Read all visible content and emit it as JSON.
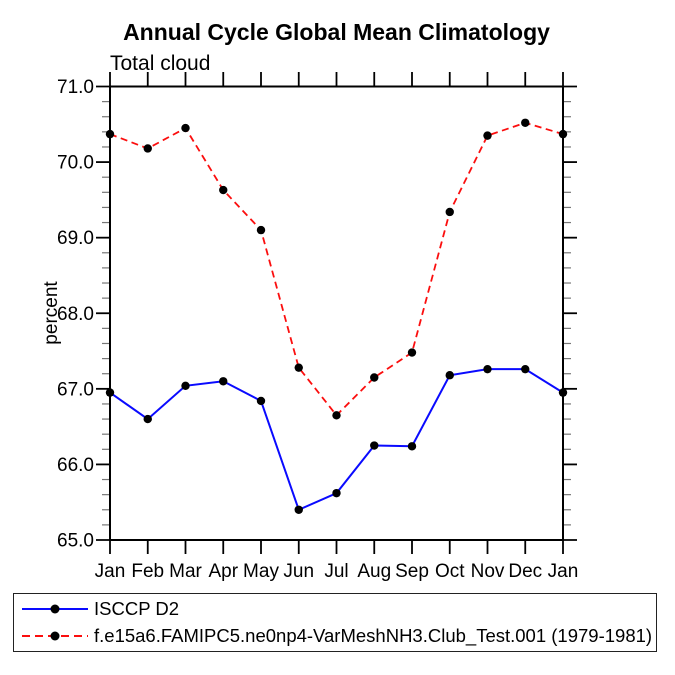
{
  "title": "Annual Cycle Global Mean Climatology",
  "subtitle": "Total cloud",
  "y_axis": {
    "label": "percent",
    "tick_labels": [
      "65.0",
      "66.0",
      "67.0",
      "68.0",
      "69.0",
      "70.0",
      "71.0"
    ]
  },
  "x_axis": {
    "tick_labels": [
      "Jan",
      "Feb",
      "Mar",
      "Apr",
      "May",
      "Jun",
      "Jul",
      "Aug",
      "Sep",
      "Oct",
      "Nov",
      "Dec",
      "Jan"
    ]
  },
  "chart_data": {
    "type": "line",
    "title": "Annual Cycle Global Mean Climatology",
    "subtitle": "Total cloud",
    "ylabel": "percent",
    "xlabel": "",
    "categories": [
      "Jan",
      "Feb",
      "Mar",
      "Apr",
      "May",
      "Jun",
      "Jul",
      "Aug",
      "Sep",
      "Oct",
      "Nov",
      "Dec",
      "Jan"
    ],
    "ylim": [
      65.0,
      71.0
    ],
    "ytick_major_step": 1.0,
    "ytick_minor_step": 0.2,
    "grid": false,
    "legend_position": "bottom-left-outside",
    "series": [
      {
        "name": "ISCCP D2",
        "color": "#0a0aff",
        "line_style": "solid",
        "marker": "filled-circle",
        "marker_color": "#000000",
        "values": [
          66.95,
          66.6,
          67.04,
          67.1,
          66.84,
          65.4,
          65.62,
          66.25,
          66.24,
          67.18,
          67.26,
          67.26,
          66.95
        ]
      },
      {
        "name": "f.e15a6.FAMIPC5.ne0np4-VarMeshNH3.Club_Test.001 (1979-1981)",
        "color": "#fb0e0e",
        "line_style": "dashed",
        "marker": "filled-circle",
        "marker_color": "#000000",
        "values": [
          70.37,
          70.18,
          70.45,
          69.63,
          69.1,
          67.28,
          66.65,
          67.15,
          67.48,
          69.34,
          70.35,
          70.52,
          70.37
        ]
      }
    ]
  },
  "colors": {
    "axis": "#000000",
    "background": "#ffffff",
    "minor_tick": "#777777"
  }
}
